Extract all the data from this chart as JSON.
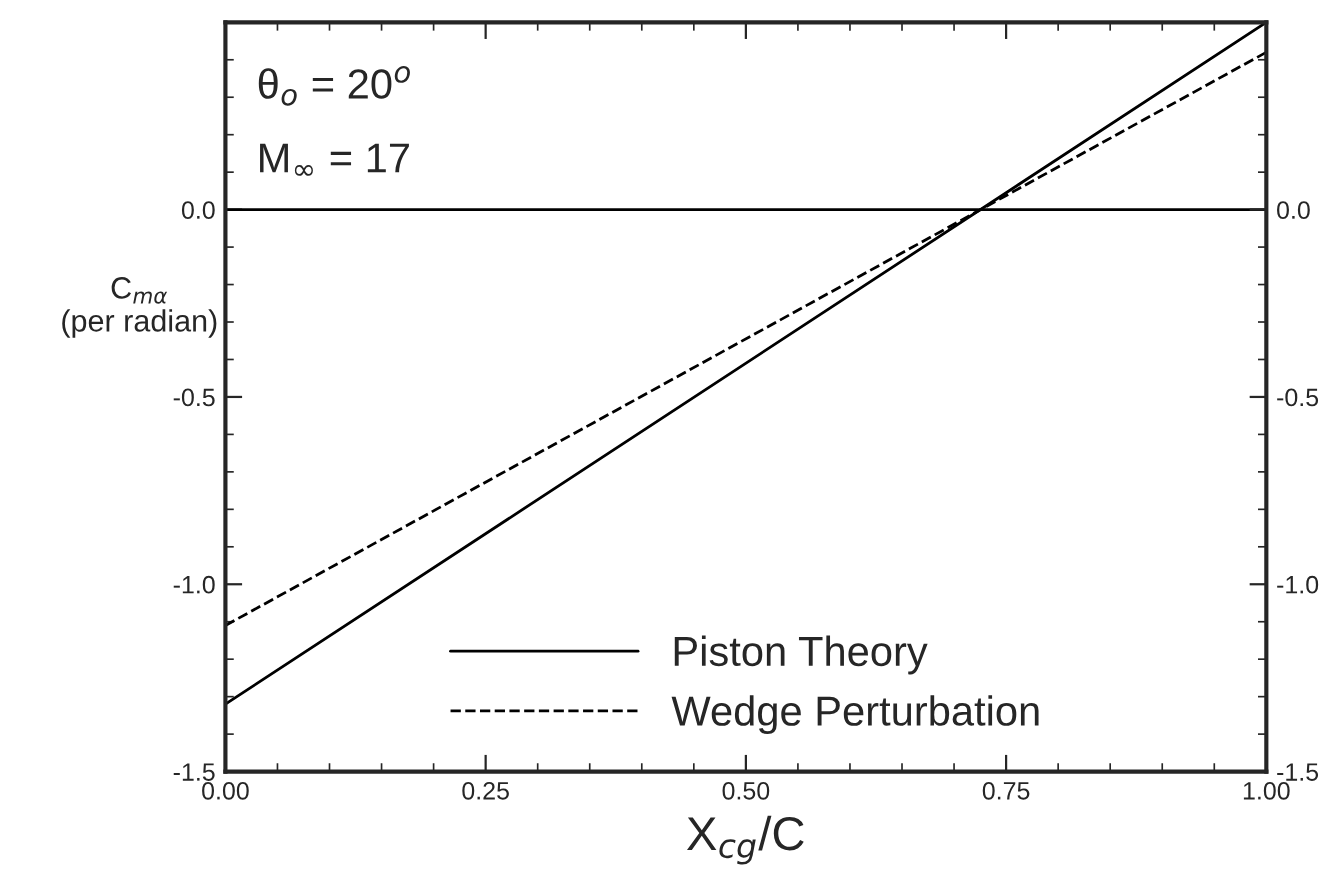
{
  "chart_data": {
    "type": "line",
    "xlabel": "X$_{cg}$/C",
    "ylabel": "C$_{mα}$\n(per radian)",
    "annotations": [
      "θ$_{o}$ = 20$^{o}$",
      "M$_{∞}$ = 17"
    ],
    "x": [
      0.0,
      1.0
    ],
    "series": [
      {
        "name": "Piston Theory",
        "color": "#000000",
        "line_style": "solid",
        "values": [
          -1.32,
          0.5
        ]
      },
      {
        "name": "Wedge Perturbation",
        "color": "#000000",
        "line_style": "dashed",
        "values": [
          -1.11,
          0.42
        ]
      }
    ],
    "xlim": [
      0.0,
      1.0
    ],
    "xticks": [
      {
        "value": 0.0,
        "label": "0.00"
      },
      0.25,
      {
        "value": 0.5,
        "label": "0.50"
      },
      0.75,
      {
        "value": 1.0,
        "label": "1.00"
      }
    ],
    "ylim": [
      -1.5,
      0.5
    ],
    "yticks": [
      -1.5,
      {
        "value": -1.0,
        "label": "-1.0"
      },
      -0.5,
      {
        "value": 0.0,
        "label": "0.0"
      }
    ],
    "y2lim": [
      -1.5,
      0.5
    ],
    "y2ticks": [
      -1.5,
      {
        "value": -1.0,
        "label": "-1.0"
      },
      -0.5,
      {
        "value": 0.0,
        "label": "0.0"
      }
    ],
    "ref_lines": [
      {
        "axis": "y",
        "value": 0.0,
        "color": "#000000",
        "line_style": "solid"
      }
    ],
    "grid": false,
    "legend": "bottom",
    "marker": "none"
  }
}
